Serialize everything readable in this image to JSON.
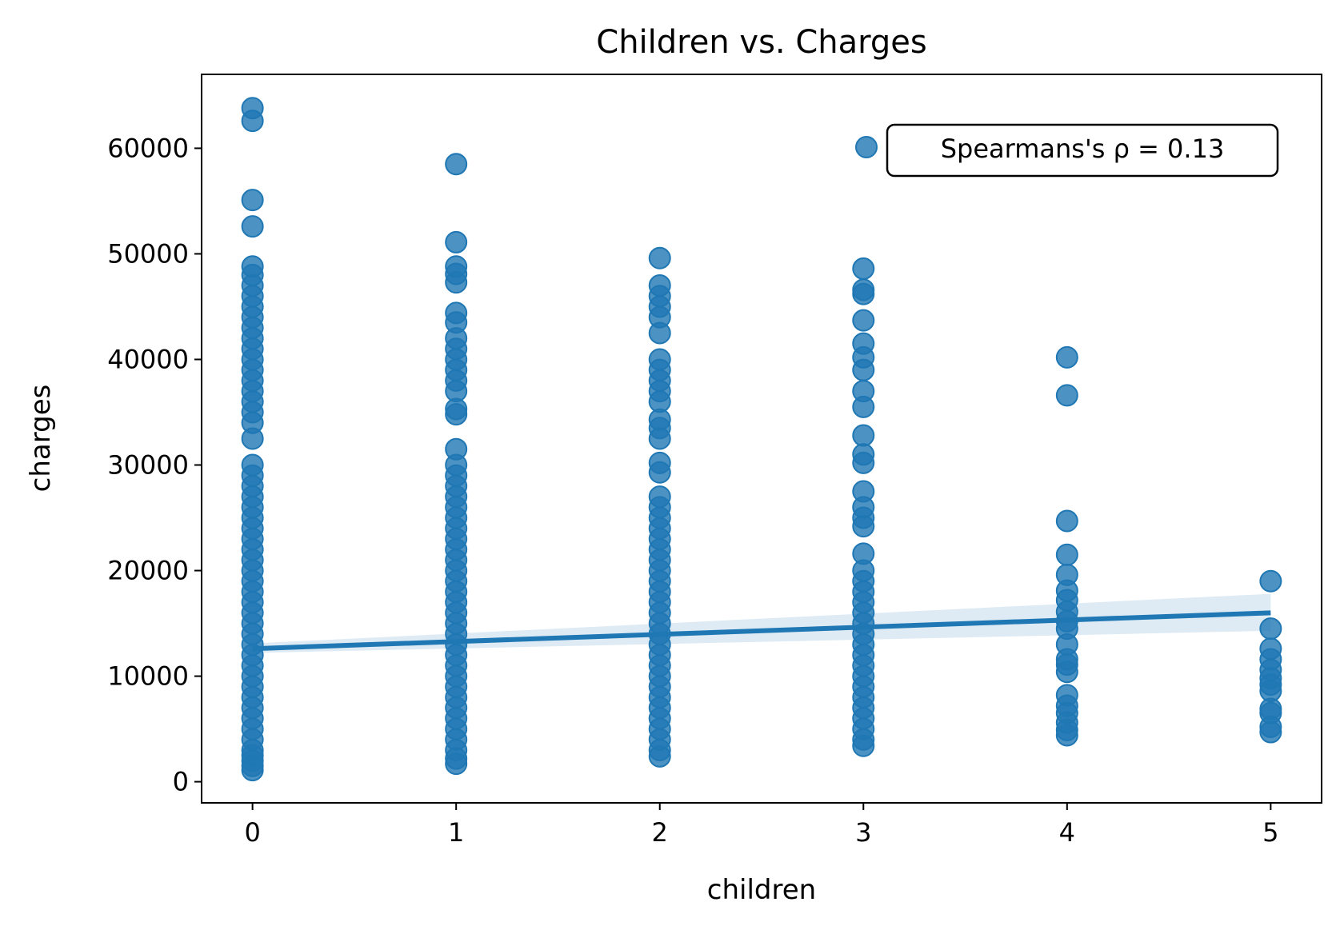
{
  "chart_data": {
    "type": "scatter",
    "title": "Children vs. Charges",
    "xlabel": "children",
    "ylabel": "charges",
    "xlim": [
      -0.25,
      5.25
    ],
    "ylim": [
      -2000,
      67000
    ],
    "xticks": [
      0,
      1,
      2,
      3,
      4,
      5
    ],
    "yticks": [
      0,
      10000,
      20000,
      30000,
      40000,
      50000,
      60000
    ],
    "grid": false,
    "point_color": "#1f77b4",
    "annotation": "Spearmans's ρ = 0.13",
    "regression": {
      "x": [
        0,
        5
      ],
      "y": [
        12600,
        16000
      ],
      "ci_lower": [
        12200,
        14300
      ],
      "ci_upper": [
        13100,
        17800
      ]
    },
    "points": [
      {
        "x": 0,
        "y": [
          1100,
          1500,
          2000,
          2500,
          3000,
          4000,
          5000,
          6000,
          7000,
          8000,
          9000,
          10000,
          11000,
          12000,
          13000,
          14000,
          15000,
          16000,
          17000,
          18000,
          19000,
          20000,
          21000,
          22000,
          23000,
          24000,
          25000,
          26000,
          27000,
          28000,
          29000,
          30000,
          32500,
          34000,
          35000,
          36000,
          37000,
          38000,
          39000,
          40000,
          41000,
          42000,
          43000,
          44000,
          45000,
          46000,
          47000,
          48000,
          48800,
          52600,
          55100,
          62600,
          63800
        ]
      },
      {
        "x": 1,
        "y": [
          1700,
          2200,
          3000,
          4000,
          5000,
          6000,
          7000,
          8000,
          9000,
          10000,
          11000,
          12000,
          13000,
          14000,
          15000,
          16000,
          17000,
          18000,
          19000,
          20000,
          21000,
          22000,
          23000,
          24000,
          25000,
          26000,
          27000,
          28000,
          29000,
          30000,
          31500,
          34800,
          35300,
          37000,
          38000,
          39000,
          40000,
          41000,
          42000,
          43500,
          44400,
          47300,
          48100,
          48800,
          51100,
          58500
        ]
      },
      {
        "x": 2,
        "y": [
          2400,
          3000,
          4000,
          5000,
          6000,
          7000,
          8000,
          9000,
          10000,
          11000,
          12000,
          13000,
          14000,
          15000,
          16000,
          17000,
          18000,
          19000,
          20000,
          21000,
          22000,
          23000,
          24000,
          25000,
          26000,
          27000,
          29300,
          30200,
          32500,
          33500,
          34300,
          36000,
          37000,
          38000,
          39000,
          40000,
          42500,
          44000,
          45000,
          46000,
          47000,
          49600
        ]
      },
      {
        "x": 3,
        "y": [
          3400,
          4000,
          5000,
          6000,
          7000,
          8000,
          9000,
          10000,
          11000,
          12000,
          13000,
          14000,
          15000,
          16000,
          17000,
          18000,
          19000,
          20000,
          21600,
          24200,
          25000,
          26000,
          27500,
          30200,
          31000,
          32800,
          35500,
          37000,
          39000,
          40200,
          41500,
          43700,
          46200,
          46600,
          48600
        ]
      },
      {
        "x": 4,
        "y": [
          4400,
          4900,
          5600,
          6500,
          7200,
          8200,
          10400,
          11100,
          11600,
          13000,
          14500,
          15200,
          16100,
          17200,
          18100,
          19600,
          21500,
          24700,
          36600,
          40200
        ]
      },
      {
        "x": 5,
        "y": [
          4700,
          5200,
          6500,
          6900,
          8600,
          9200,
          9800,
          10600,
          11600,
          12600,
          14500,
          19000
        ]
      }
    ]
  }
}
